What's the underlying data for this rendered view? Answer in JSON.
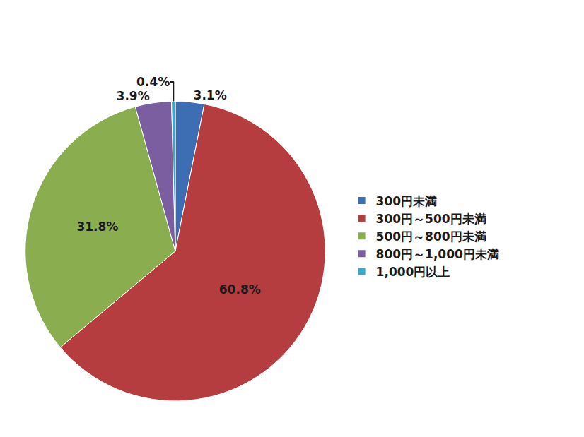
{
  "chart_data": {
    "type": "pie",
    "categories": [
      "300円未満",
      "300円～500円未満",
      "500円～800円未満",
      "800円～1,000円未満",
      "1,000円以上"
    ],
    "values": [
      3.1,
      60.8,
      31.8,
      3.9,
      0.4
    ],
    "value_labels": [
      "3.1%",
      "60.8%",
      "31.8%",
      "3.9%",
      "0.4%"
    ],
    "colors": [
      "#3d6db3",
      "#b53d40",
      "#8aae4f",
      "#7a5ea0",
      "#3ea6c6"
    ],
    "data_labels": true,
    "legend": "right"
  }
}
